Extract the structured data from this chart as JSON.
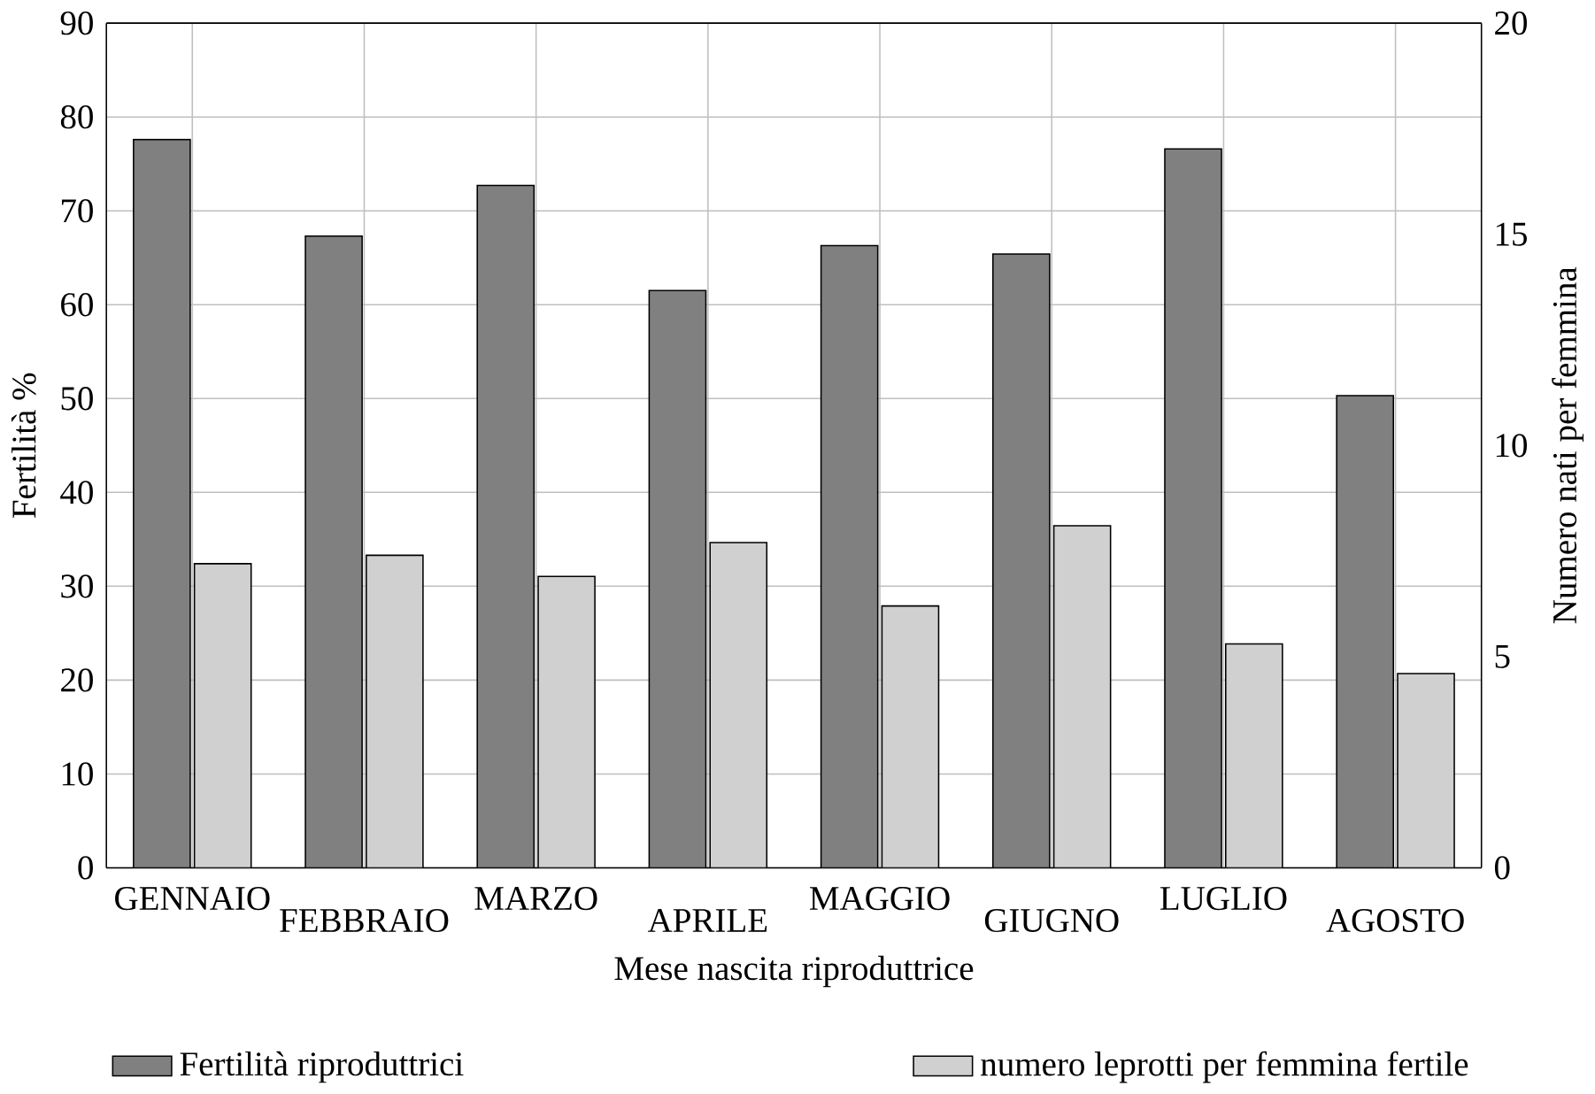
{
  "chart_data": {
    "type": "bar",
    "xlabel": "Mese nascita riproduttrice",
    "ylabel": "Fertilità %",
    "y2label": "Numero nati per femmina",
    "categories": [
      "GENNAIO",
      "FEBBRAIO",
      "MARZO",
      "APRILE",
      "MAGGIO",
      "GIUGNO",
      "LUGLIO",
      "AGOSTO"
    ],
    "series": [
      {
        "name": "Fertilità riproduttrici",
        "color": "#808080",
        "values": [
          77.6,
          67.3,
          72.7,
          61.5,
          66.3,
          65.4,
          76.6,
          50.3
        ]
      },
      {
        "name": "numero leprotti per femmina fertile",
        "color": "#d0d0d0",
        "axis": "y2",
        "values": [
          7.2,
          7.4,
          6.9,
          7.7,
          6.2,
          8.1,
          5.3,
          4.6
        ]
      }
    ],
    "ylim": [
      0,
      90
    ],
    "yticks": [
      0,
      10,
      20,
      30,
      40,
      50,
      60,
      70,
      80,
      90
    ],
    "y2lim": [
      0,
      20
    ],
    "y2ticks": [
      0,
      5,
      10,
      15,
      20
    ],
    "grid": true,
    "legend": "bottom"
  }
}
